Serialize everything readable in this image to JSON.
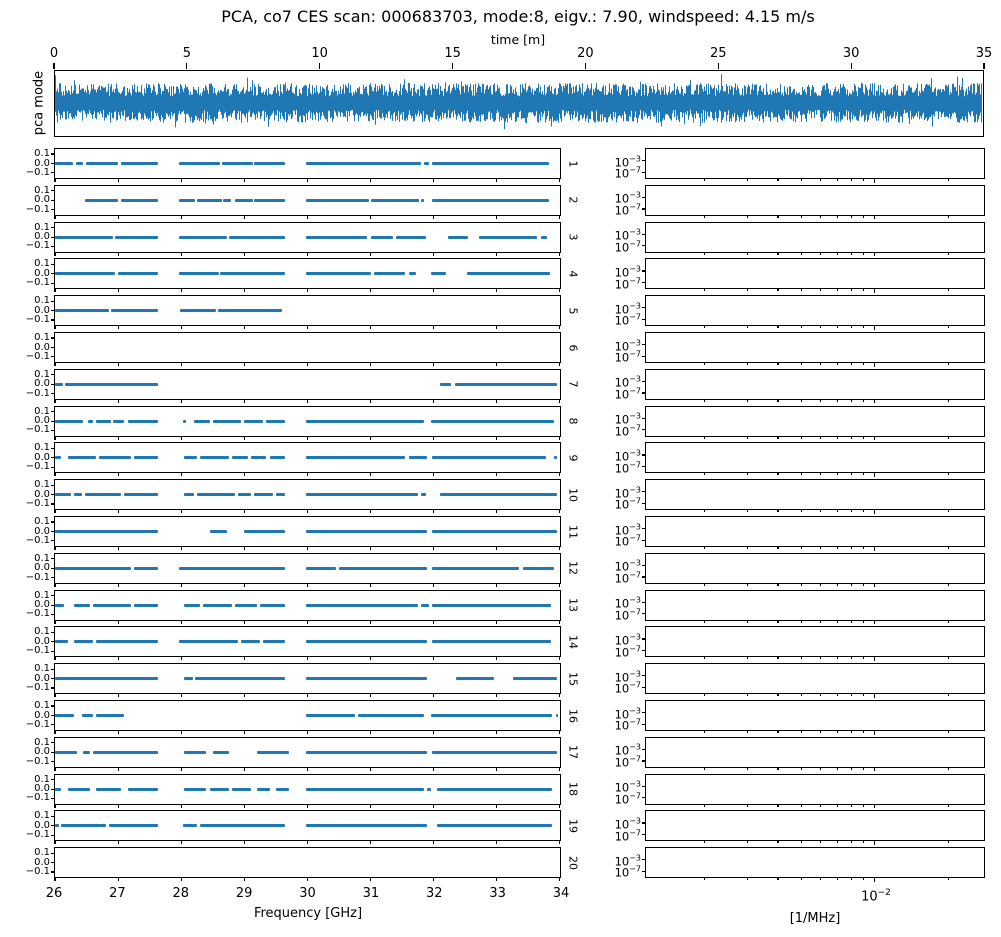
{
  "figure": {
    "title": "PCA, co7 CES scan: 000683703, mode:8, eigv.: 7.90, windspeed: 4.15 m/s",
    "background": "#ffffff",
    "line_color": "#1f77b4",
    "axis_color": "#000000"
  },
  "chart_data": [
    {
      "type": "line",
      "name": "pca-mode-timeseries",
      "xlabel": "time [m]",
      "ylabel": "pca mode",
      "xlim": [
        0,
        35
      ],
      "xticks": [
        0,
        5,
        10,
        15,
        20,
        25,
        30,
        35
      ],
      "xtick_labels": [
        "0",
        "5",
        "10",
        "15",
        "20",
        "25",
        "30",
        "35"
      ],
      "series_description": "dense zero-mean broadband noise filling the axes, one taller spike near t=25.1",
      "noise": {
        "seed": 987654321,
        "points": 929,
        "core_amplitude": 0.42,
        "spike_amplitude": 0.93,
        "spike_x": 25.1
      }
    },
    {
      "type": "line",
      "name": "frequency-mask-rows",
      "xlabel": "Frequency [GHz]",
      "xlim": [
        26,
        34
      ],
      "xticks": [
        26,
        27,
        28,
        29,
        30,
        31,
        32,
        33,
        34
      ],
      "xtick_labels": [
        "26",
        "27",
        "28",
        "29",
        "30",
        "31",
        "32",
        "33",
        "34"
      ],
      "ylim": [
        -0.15,
        0.15
      ],
      "ytick_labels": [
        "0.1",
        "0.0",
        "−0.1"
      ],
      "value_level": 0.0,
      "rows": [
        {
          "label": "1",
          "segments": [
            [
              26.0,
              26.29
            ],
            [
              26.33,
              26.45
            ],
            [
              26.49,
              27.0
            ],
            [
              27.04,
              27.63
            ],
            [
              27.96,
              28.61
            ],
            [
              28.64,
              29.14
            ],
            [
              29.16,
              29.64
            ],
            [
              29.98,
              31.8
            ],
            [
              31.85,
              31.93
            ],
            [
              31.97,
              33.83
            ]
          ]
        },
        {
          "label": "2",
          "segments": [
            [
              26.47,
              27.0
            ],
            [
              27.04,
              27.63
            ],
            [
              27.96,
              28.21
            ],
            [
              28.25,
              28.64
            ],
            [
              28.66,
              28.79
            ],
            [
              28.85,
              29.14
            ],
            [
              29.16,
              29.64
            ],
            [
              29.98,
              30.98
            ],
            [
              31.01,
              31.77
            ],
            [
              31.8,
              31.85
            ],
            [
              31.97,
              33.83
            ]
          ]
        },
        {
          "label": "3",
          "segments": [
            [
              26.0,
              26.92
            ],
            [
              26.95,
              27.63
            ],
            [
              27.96,
              28.73
            ],
            [
              28.76,
              29.64
            ],
            [
              29.98,
              30.95
            ],
            [
              31.0,
              31.35
            ],
            [
              31.4,
              31.88
            ],
            [
              32.22,
              32.54
            ],
            [
              32.72,
              33.64
            ],
            [
              33.7,
              33.8
            ]
          ]
        },
        {
          "label": "4",
          "segments": [
            [
              26.0,
              26.95
            ],
            [
              27.0,
              27.63
            ],
            [
              27.96,
              28.6
            ],
            [
              28.62,
              29.64
            ],
            [
              29.98,
              31.0
            ],
            [
              31.05,
              31.55
            ],
            [
              31.6,
              31.72
            ],
            [
              31.95,
              32.2
            ],
            [
              32.52,
              33.85
            ]
          ]
        },
        {
          "label": "5",
          "segments": [
            [
              26.0,
              26.85
            ],
            [
              26.88,
              27.63
            ],
            [
              27.98,
              28.55
            ],
            [
              28.58,
              29.6
            ]
          ]
        },
        {
          "label": "6",
          "segments": []
        },
        {
          "label": "7",
          "segments": [
            [
              26.0,
              26.12
            ],
            [
              26.16,
              27.63
            ],
            [
              32.1,
              32.28
            ],
            [
              32.34,
              33.95
            ]
          ]
        },
        {
          "label": "8",
          "segments": [
            [
              26.0,
              26.45
            ],
            [
              26.52,
              26.6
            ],
            [
              26.65,
              26.88
            ],
            [
              26.92,
              27.1
            ],
            [
              27.15,
              27.63
            ],
            [
              28.02,
              28.08
            ],
            [
              28.2,
              28.45
            ],
            [
              28.5,
              28.95
            ],
            [
              29.0,
              29.3
            ],
            [
              29.35,
              29.64
            ],
            [
              29.98,
              31.85
            ],
            [
              31.95,
              33.9
            ]
          ]
        },
        {
          "label": "9",
          "segments": [
            [
              26.0,
              26.1
            ],
            [
              26.2,
              26.65
            ],
            [
              26.7,
              27.2
            ],
            [
              27.25,
              27.63
            ],
            [
              28.05,
              28.25
            ],
            [
              28.3,
              28.75
            ],
            [
              28.8,
              29.05
            ],
            [
              29.1,
              29.35
            ],
            [
              29.4,
              29.64
            ],
            [
              29.98,
              31.55
            ],
            [
              31.6,
              31.9
            ],
            [
              31.97,
              33.78
            ],
            [
              33.9,
              33.95
            ]
          ]
        },
        {
          "label": "10",
          "segments": [
            [
              26.0,
              26.25
            ],
            [
              26.3,
              26.42
            ],
            [
              26.47,
              27.05
            ],
            [
              27.1,
              27.63
            ],
            [
              28.05,
              28.2
            ],
            [
              28.25,
              28.85
            ],
            [
              28.9,
              29.1
            ],
            [
              29.15,
              29.45
            ],
            [
              29.5,
              29.64
            ],
            [
              29.98,
              31.75
            ],
            [
              31.8,
              31.87
            ],
            [
              32.1,
              33.95
            ]
          ]
        },
        {
          "label": "11",
          "segments": [
            [
              26.0,
              27.63
            ],
            [
              28.45,
              28.72
            ],
            [
              29.0,
              29.64
            ],
            [
              29.98,
              31.9
            ],
            [
              31.97,
              33.95
            ]
          ]
        },
        {
          "label": "12",
          "segments": [
            [
              26.0,
              27.2
            ],
            [
              27.25,
              27.63
            ],
            [
              27.96,
              29.64
            ],
            [
              29.98,
              30.45
            ],
            [
              30.5,
              31.9
            ],
            [
              31.97,
              33.35
            ],
            [
              33.42,
              33.9
            ]
          ]
        },
        {
          "label": "13",
          "segments": [
            [
              26.0,
              26.15
            ],
            [
              26.3,
              26.55
            ],
            [
              26.6,
              27.2
            ],
            [
              27.25,
              27.63
            ],
            [
              28.05,
              28.3
            ],
            [
              28.35,
              28.8
            ],
            [
              28.85,
              29.2
            ],
            [
              29.25,
              29.64
            ],
            [
              29.98,
              31.75
            ],
            [
              31.8,
              31.92
            ],
            [
              31.97,
              33.85
            ]
          ]
        },
        {
          "label": "14",
          "segments": [
            [
              26.0,
              26.2
            ],
            [
              26.3,
              26.6
            ],
            [
              26.65,
              27.63
            ],
            [
              27.96,
              28.9
            ],
            [
              28.95,
              29.25
            ],
            [
              29.3,
              29.64
            ],
            [
              29.98,
              31.9
            ],
            [
              31.97,
              33.85
            ]
          ]
        },
        {
          "label": "15",
          "segments": [
            [
              26.0,
              27.63
            ],
            [
              28.05,
              28.18
            ],
            [
              28.22,
              29.64
            ],
            [
              29.98,
              31.9
            ],
            [
              32.35,
              32.95
            ],
            [
              33.25,
              33.95
            ]
          ]
        },
        {
          "label": "16",
          "segments": [
            [
              26.0,
              26.3
            ],
            [
              26.42,
              26.6
            ],
            [
              26.65,
              27.1
            ],
            [
              29.98,
              30.75
            ],
            [
              30.8,
              31.85
            ],
            [
              31.95,
              33.88
            ],
            [
              33.93,
              33.97
            ]
          ]
        },
        {
          "label": "17",
          "segments": [
            [
              26.0,
              26.35
            ],
            [
              26.45,
              26.55
            ],
            [
              26.6,
              27.63
            ],
            [
              28.05,
              28.4
            ],
            [
              28.5,
              28.75
            ],
            [
              29.2,
              29.7
            ],
            [
              29.98,
              31.9
            ],
            [
              31.97,
              33.95
            ]
          ]
        },
        {
          "label": "18",
          "segments": [
            [
              26.0,
              26.1
            ],
            [
              26.2,
              26.55
            ],
            [
              26.65,
              27.05
            ],
            [
              27.15,
              27.63
            ],
            [
              28.05,
              28.4
            ],
            [
              28.45,
              28.75
            ],
            [
              28.8,
              29.1
            ],
            [
              29.2,
              29.4
            ],
            [
              29.5,
              29.7
            ],
            [
              29.98,
              31.85
            ],
            [
              31.9,
              31.95
            ],
            [
              32.05,
              33.88
            ]
          ]
        },
        {
          "label": "19",
          "segments": [
            [
              26.0,
              26.06
            ],
            [
              26.1,
              26.8
            ],
            [
              26.85,
              27.63
            ],
            [
              28.02,
              28.25
            ],
            [
              28.3,
              29.64
            ],
            [
              29.98,
              31.9
            ],
            [
              32.05,
              33.88
            ]
          ]
        },
        {
          "label": "20",
          "segments": []
        }
      ]
    },
    {
      "type": "line",
      "name": "power-spectrum-rows",
      "xlabel": "[1/MHz]",
      "xscale": "log",
      "xlim": [
        0.00115,
        0.028
      ],
      "xtick_major": {
        "value": 0.01,
        "label_base": "10",
        "label_exp": "−2"
      },
      "xtick_minor_values": [
        0.002,
        0.003,
        0.004,
        0.005,
        0.006,
        0.007,
        0.008,
        0.009,
        0.02
      ],
      "ylim_exponents": [
        -9,
        1
      ],
      "yticks": [
        {
          "value_exponent": -3,
          "label_base": "10",
          "label_exp": "−3"
        },
        {
          "value_exponent": -7,
          "label_base": "10",
          "label_exp": "−7"
        }
      ],
      "row_count": 20,
      "rows_empty": true,
      "series": []
    }
  ]
}
